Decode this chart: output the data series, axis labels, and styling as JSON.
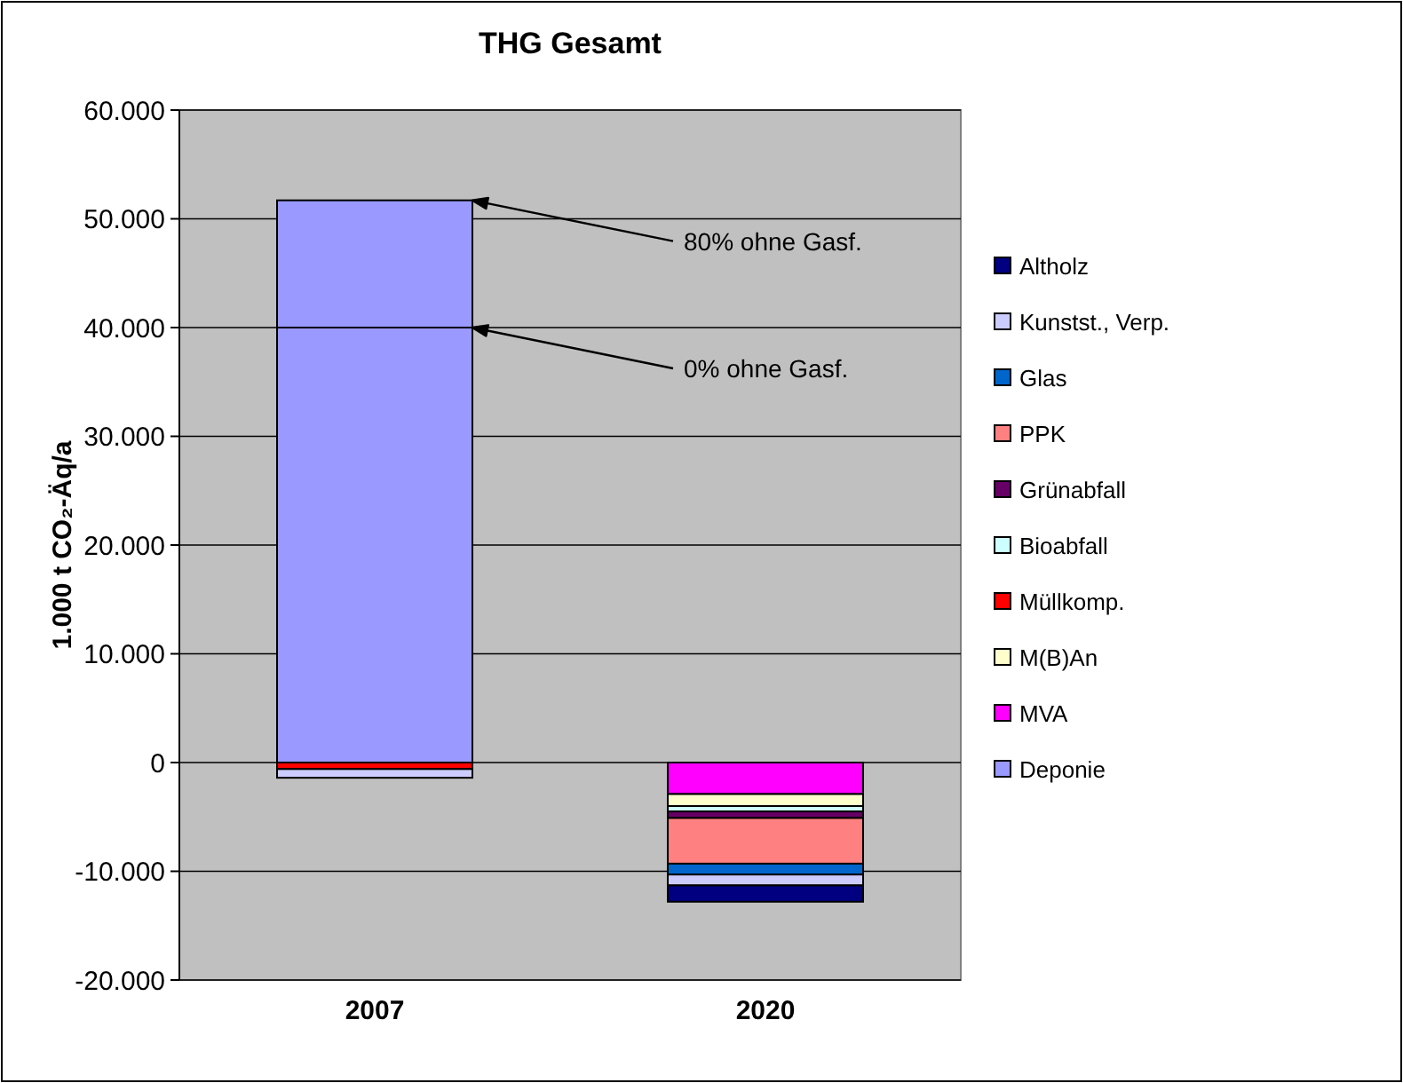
{
  "chart_data": {
    "type": "bar",
    "title": "THG Gesamt",
    "ylabel": "1.000 t CO₂-Äq/a",
    "categories": [
      "2007",
      "2020"
    ],
    "stacked": true,
    "grid": "y",
    "legend": "right",
    "ylim": [
      -20000,
      60000
    ],
    "yticks": [
      {
        "value": -20000,
        "label": "-20.000"
      },
      {
        "value": -10000,
        "label": "-10.000"
      },
      {
        "value": 0,
        "label": "0"
      },
      {
        "value": 10000,
        "label": "10.000"
      },
      {
        "value": 20000,
        "label": "20.000"
      },
      {
        "value": 30000,
        "label": "30.000"
      },
      {
        "value": 40000,
        "label": "40.000"
      },
      {
        "value": 50000,
        "label": "50.000"
      },
      {
        "value": 60000,
        "label": "60.000"
      }
    ],
    "series": [
      {
        "name": "Deponie",
        "color": "#9999ff",
        "values": [
          40000,
          0
        ]
      },
      {
        "color": "#9999ff",
        "values": [
          11700,
          0
        ]
      },
      {
        "name": "MVA",
        "color": "#ff00ff",
        "values": [
          0,
          -2900
        ]
      },
      {
        "name": "M(B)An",
        "color": "#ffffcc",
        "values": [
          0,
          -1100
        ]
      },
      {
        "name": "Müllkomp.",
        "color": "#ff0000",
        "values": [
          -600,
          0
        ]
      },
      {
        "name": "Bioabfall",
        "color": "#ccffff",
        "values": [
          0,
          -500
        ]
      },
      {
        "name": "Grünabfall",
        "color": "#660066",
        "values": [
          0,
          -600
        ]
      },
      {
        "name": "PPK",
        "color": "#ff8080",
        "values": [
          0,
          -4200
        ]
      },
      {
        "name": "Glas",
        "color": "#0066cc",
        "values": [
          0,
          -1000
        ]
      },
      {
        "name": "Kunstst., Verp.",
        "color": "#ccccff",
        "values": [
          -800,
          -1000
        ]
      },
      {
        "name": "Altholz",
        "color": "#000080",
        "values": [
          0,
          -1500
        ]
      }
    ],
    "annotations": [
      "80% ohne Gasf.",
      "0% ohne Gasf."
    ]
  }
}
